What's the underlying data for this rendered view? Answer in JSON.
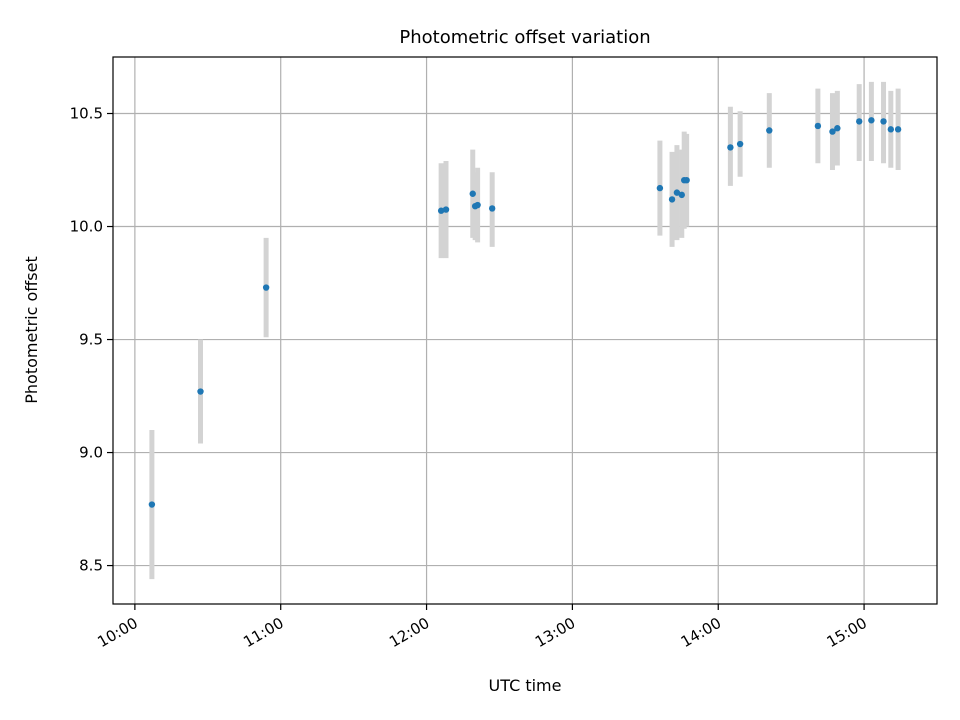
{
  "chart_data": {
    "type": "scatter",
    "title": "Photometric offset variation",
    "xlabel": "UTC time",
    "ylabel": "Photometric offset",
    "x_tick_labels": [
      "10:00",
      "11:00",
      "12:00",
      "13:00",
      "14:00",
      "15:00"
    ],
    "x_tick_values": [
      "10:00",
      "11:00",
      "12:00",
      "13:00",
      "14:00",
      "15:00"
    ],
    "xlim": [
      "09:51",
      "15:30"
    ],
    "y_tick_values": [
      8.5,
      9.0,
      9.5,
      10.0,
      10.5
    ],
    "y_tick_labels": [
      "8.5",
      "9.0",
      "9.5",
      "10.0",
      "10.5"
    ],
    "ylim": [
      8.33,
      10.75
    ],
    "grid": true,
    "series": [
      {
        "marker_color": "#1f77b4",
        "errorbar_color": "#d3d3d3",
        "points": [
          {
            "x": "10:07",
            "y": 8.77,
            "ylow": 8.44,
            "yhigh": 9.1
          },
          {
            "x": "10:27",
            "y": 9.27,
            "ylow": 9.04,
            "yhigh": 9.5
          },
          {
            "x": "10:54",
            "y": 9.73,
            "ylow": 9.51,
            "yhigh": 9.95
          },
          {
            "x": "12:06",
            "y": 10.07,
            "ylow": 9.86,
            "yhigh": 10.28
          },
          {
            "x": "12:08",
            "y": 10.075,
            "ylow": 9.86,
            "yhigh": 10.29
          },
          {
            "x": "12:19",
            "y": 10.145,
            "ylow": 9.95,
            "yhigh": 10.34
          },
          {
            "x": "12:20",
            "y": 10.09,
            "ylow": 9.94,
            "yhigh": 10.24
          },
          {
            "x": "12:21",
            "y": 10.095,
            "ylow": 9.93,
            "yhigh": 10.26
          },
          {
            "x": "12:27",
            "y": 10.08,
            "ylow": 9.91,
            "yhigh": 10.24
          },
          {
            "x": "13:36",
            "y": 10.17,
            "ylow": 9.96,
            "yhigh": 10.38
          },
          {
            "x": "13:41",
            "y": 10.12,
            "ylow": 9.91,
            "yhigh": 10.33
          },
          {
            "x": "13:43",
            "y": 10.15,
            "ylow": 9.94,
            "yhigh": 10.36
          },
          {
            "x": "13:45",
            "y": 10.14,
            "ylow": 9.95,
            "yhigh": 10.34
          },
          {
            "x": "13:46",
            "y": 10.205,
            "ylow": 9.99,
            "yhigh": 10.42
          },
          {
            "x": "13:47",
            "y": 10.205,
            "ylow": 10.0,
            "yhigh": 10.41
          },
          {
            "x": "14:05",
            "y": 10.35,
            "ylow": 10.18,
            "yhigh": 10.53
          },
          {
            "x": "14:09",
            "y": 10.365,
            "ylow": 10.22,
            "yhigh": 10.51
          },
          {
            "x": "14:21",
            "y": 10.425,
            "ylow": 10.26,
            "yhigh": 10.59
          },
          {
            "x": "14:41",
            "y": 10.445,
            "ylow": 10.28,
            "yhigh": 10.61
          },
          {
            "x": "14:47",
            "y": 10.42,
            "ylow": 10.25,
            "yhigh": 10.59
          },
          {
            "x": "14:49",
            "y": 10.435,
            "ylow": 10.27,
            "yhigh": 10.6
          },
          {
            "x": "14:58",
            "y": 10.465,
            "ylow": 10.29,
            "yhigh": 10.63
          },
          {
            "x": "15:03",
            "y": 10.47,
            "ylow": 10.29,
            "yhigh": 10.64
          },
          {
            "x": "15:08",
            "y": 10.465,
            "ylow": 10.28,
            "yhigh": 10.64
          },
          {
            "x": "15:11",
            "y": 10.43,
            "ylow": 10.26,
            "yhigh": 10.6
          },
          {
            "x": "15:14",
            "y": 10.43,
            "ylow": 10.25,
            "yhigh": 10.61
          }
        ]
      }
    ]
  }
}
